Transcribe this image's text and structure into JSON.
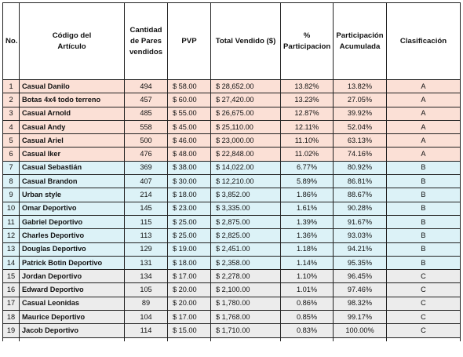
{
  "headers": {
    "no": "No.",
    "codigo": "Código del Artículo",
    "cantidad": "Cantidad de Pares vendidos",
    "pvp": "PVP",
    "total": "Total Vendido ($)",
    "participacion": "% Participacion",
    "acumulada": "Participación Acumulada",
    "clasificacion": "Clasificación"
  },
  "colors": {
    "A": "#fbe0d6",
    "B": "#dcf2f7",
    "C": "#ececec"
  },
  "rows": [
    {
      "no": "1",
      "name": "Casual Danilo",
      "qty": "494",
      "pvp": "$ 58.00",
      "total": "$ 28,652.00",
      "pct": "13.82%",
      "acc": "13.82%",
      "cls": "A"
    },
    {
      "no": "2",
      "name": "Botas 4x4 todo terreno",
      "qty": "457",
      "pvp": "$ 60.00",
      "total": "$ 27,420.00",
      "pct": "13.23%",
      "acc": "27.05%",
      "cls": "A"
    },
    {
      "no": "3",
      "name": "Casual Arnold",
      "qty": "485",
      "pvp": "$ 55.00",
      "total": "$ 26,675.00",
      "pct": "12.87%",
      "acc": "39.92%",
      "cls": "A"
    },
    {
      "no": "4",
      "name": "Casual Andy",
      "qty": "558",
      "pvp": "$ 45.00",
      "total": "$ 25,110.00",
      "pct": "12.11%",
      "acc": "52.04%",
      "cls": "A"
    },
    {
      "no": "5",
      "name": "Casual Ariel",
      "qty": "500",
      "pvp": "$ 46.00",
      "total": "$ 23,000.00",
      "pct": "11.10%",
      "acc": "63.13%",
      "cls": "A"
    },
    {
      "no": "6",
      "name": "Casual Iker",
      "qty": "476",
      "pvp": "$ 48.00",
      "total": "$ 22,848.00",
      "pct": "11.02%",
      "acc": "74.16%",
      "cls": "A"
    },
    {
      "no": "7",
      "name": "Casual Sebastián",
      "qty": "369",
      "pvp": "$ 38.00",
      "total": "$ 14,022.00",
      "pct": "6.77%",
      "acc": "80.92%",
      "cls": "B"
    },
    {
      "no": "8",
      "name": "Casual Brandon",
      "qty": "407",
      "pvp": "$ 30.00",
      "total": "$ 12,210.00",
      "pct": "5.89%",
      "acc": "86.81%",
      "cls": "B"
    },
    {
      "no": "9",
      "name": "Urban style",
      "qty": "214",
      "pvp": "$ 18.00",
      "total": "$ 3,852.00",
      "pct": "1.86%",
      "acc": "88.67%",
      "cls": "B"
    },
    {
      "no": "10",
      "name": "Omar Deportivo",
      "qty": "145",
      "pvp": "$ 23.00",
      "total": "$ 3,335.00",
      "pct": "1.61%",
      "acc": "90.28%",
      "cls": "B"
    },
    {
      "no": "11",
      "name": "Gabriel Deportivo",
      "qty": "115",
      "pvp": "$ 25.00",
      "total": "$ 2,875.00",
      "pct": "1.39%",
      "acc": "91.67%",
      "cls": "B"
    },
    {
      "no": "12",
      "name": "Charles Deportivo",
      "qty": "113",
      "pvp": "$ 25.00",
      "total": "$ 2,825.00",
      "pct": "1.36%",
      "acc": "93.03%",
      "cls": "B"
    },
    {
      "no": "13",
      "name": "Douglas Deportivo",
      "qty": "129",
      "pvp": "$ 19.00",
      "total": "$ 2,451.00",
      "pct": "1.18%",
      "acc": "94.21%",
      "cls": "B"
    },
    {
      "no": "14",
      "name": "Patrick Botin Deportivo",
      "qty": "131",
      "pvp": "$ 18.00",
      "total": "$ 2,358.00",
      "pct": "1.14%",
      "acc": "95.35%",
      "cls": "B"
    },
    {
      "no": "15",
      "name": "Jordan Deportivo",
      "qty": "134",
      "pvp": "$ 17.00",
      "total": "$ 2,278.00",
      "pct": "1.10%",
      "acc": "96.45%",
      "cls": "C"
    },
    {
      "no": "16",
      "name": "Edward Deportivo",
      "qty": "105",
      "pvp": "$ 20.00",
      "total": "$ 2,100.00",
      "pct": "1.01%",
      "acc": "97.46%",
      "cls": "C"
    },
    {
      "no": "17",
      "name": "Casual Leonidas",
      "qty": "89",
      "pvp": "$ 20.00",
      "total": "$ 1,780.00",
      "pct": "0.86%",
      "acc": "98.32%",
      "cls": "C"
    },
    {
      "no": "18",
      "name": "Maurice Deportivo",
      "qty": "104",
      "pvp": "$ 17.00",
      "total": "$ 1,768.00",
      "pct": "0.85%",
      "acc": "99.17%",
      "cls": "C"
    },
    {
      "no": "19",
      "name": "Jacob Deportivo",
      "qty": "114",
      "pvp": "$ 15.00",
      "total": "$ 1,710.00",
      "pct": "0.83%",
      "acc": "100.00%",
      "cls": "C"
    }
  ]
}
